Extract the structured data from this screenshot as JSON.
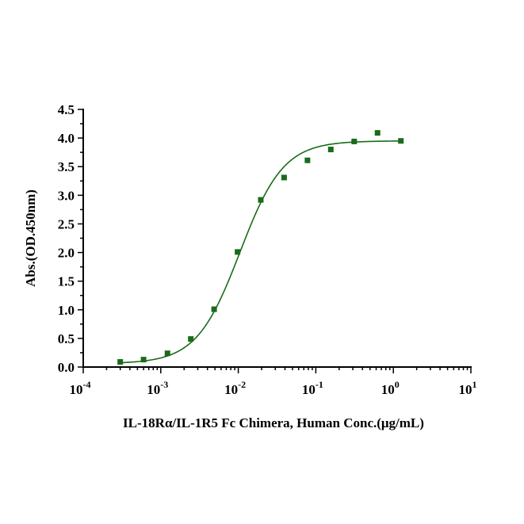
{
  "chart_data": {
    "type": "scatter",
    "xlabel": "IL-18Rα/IL-1R5 Fc Chimera, Human Conc.(μg/mL)",
    "ylabel": "Abs.(OD.450nm)",
    "x_scale": "log",
    "xlim": [
      0.0001,
      10
    ],
    "ylim": [
      0,
      4.5
    ],
    "x_ticks": [
      {
        "value": 0.0001,
        "base": "10",
        "exp": "-4"
      },
      {
        "value": 0.001,
        "base": "10",
        "exp": "-3"
      },
      {
        "value": 0.01,
        "base": "10",
        "exp": "-2"
      },
      {
        "value": 0.1,
        "base": "10",
        "exp": "-1"
      },
      {
        "value": 1,
        "base": "10",
        "exp": "0"
      },
      {
        "value": 10,
        "base": "10",
        "exp": "1"
      }
    ],
    "y_ticks": [
      "0.0",
      "0.5",
      "1.0",
      "1.5",
      "2.0",
      "2.5",
      "3.0",
      "3.5",
      "4.0",
      "4.5"
    ],
    "color": "#1a6b1a",
    "series": [
      {
        "marker": "square",
        "x": [
          0.0003,
          0.0006,
          0.00122,
          0.00244,
          0.00488,
          0.00977,
          0.0195,
          0.039,
          0.078,
          0.156,
          0.3125,
          0.625,
          1.25
        ],
        "y": [
          0.09,
          0.13,
          0.24,
          0.49,
          1.01,
          2.01,
          2.92,
          3.31,
          3.61,
          3.8,
          3.94,
          4.09,
          3.95
        ]
      }
    ],
    "fit": {
      "type": "4PL",
      "bottom": 0.06,
      "top": 3.95,
      "ec50": 0.0105,
      "hill": 1.55,
      "x_range": [
        0.0003,
        1.25
      ]
    },
    "grid": false,
    "legend": "none"
  }
}
